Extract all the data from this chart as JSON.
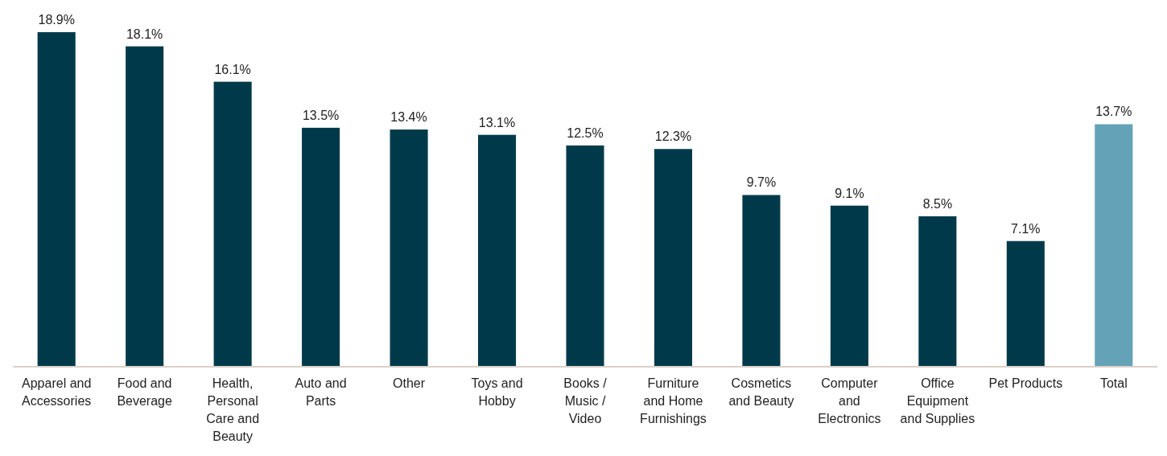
{
  "chart_data": {
    "type": "bar",
    "categories": [
      "Apparel and Accessories",
      "Food and Beverage",
      "Health, Personal Care and Beauty",
      "Auto and Parts",
      "Other",
      "Toys and Hobby",
      "Books / Music / Video",
      "Furniture and Home Furnishings",
      "Cosmetics and Beauty",
      "Computer and Electronics",
      "Office Equipment and Supplies",
      "Pet Products",
      "Total"
    ],
    "values": [
      18.9,
      18.1,
      16.1,
      13.5,
      13.4,
      13.1,
      12.5,
      12.3,
      9.7,
      9.1,
      8.5,
      7.1,
      13.7
    ],
    "value_labels": [
      "18.9%",
      "18.1%",
      "16.1%",
      "13.5%",
      "13.4%",
      "13.1%",
      "12.5%",
      "12.3%",
      "9.7%",
      "9.1%",
      "8.5%",
      "7.1%",
      "13.7%"
    ],
    "colors": [
      "#003a4a",
      "#003a4a",
      "#003a4a",
      "#003a4a",
      "#003a4a",
      "#003a4a",
      "#003a4a",
      "#003a4a",
      "#003a4a",
      "#003a4a",
      "#003a4a",
      "#003a4a",
      "#64a2b8"
    ]
  }
}
